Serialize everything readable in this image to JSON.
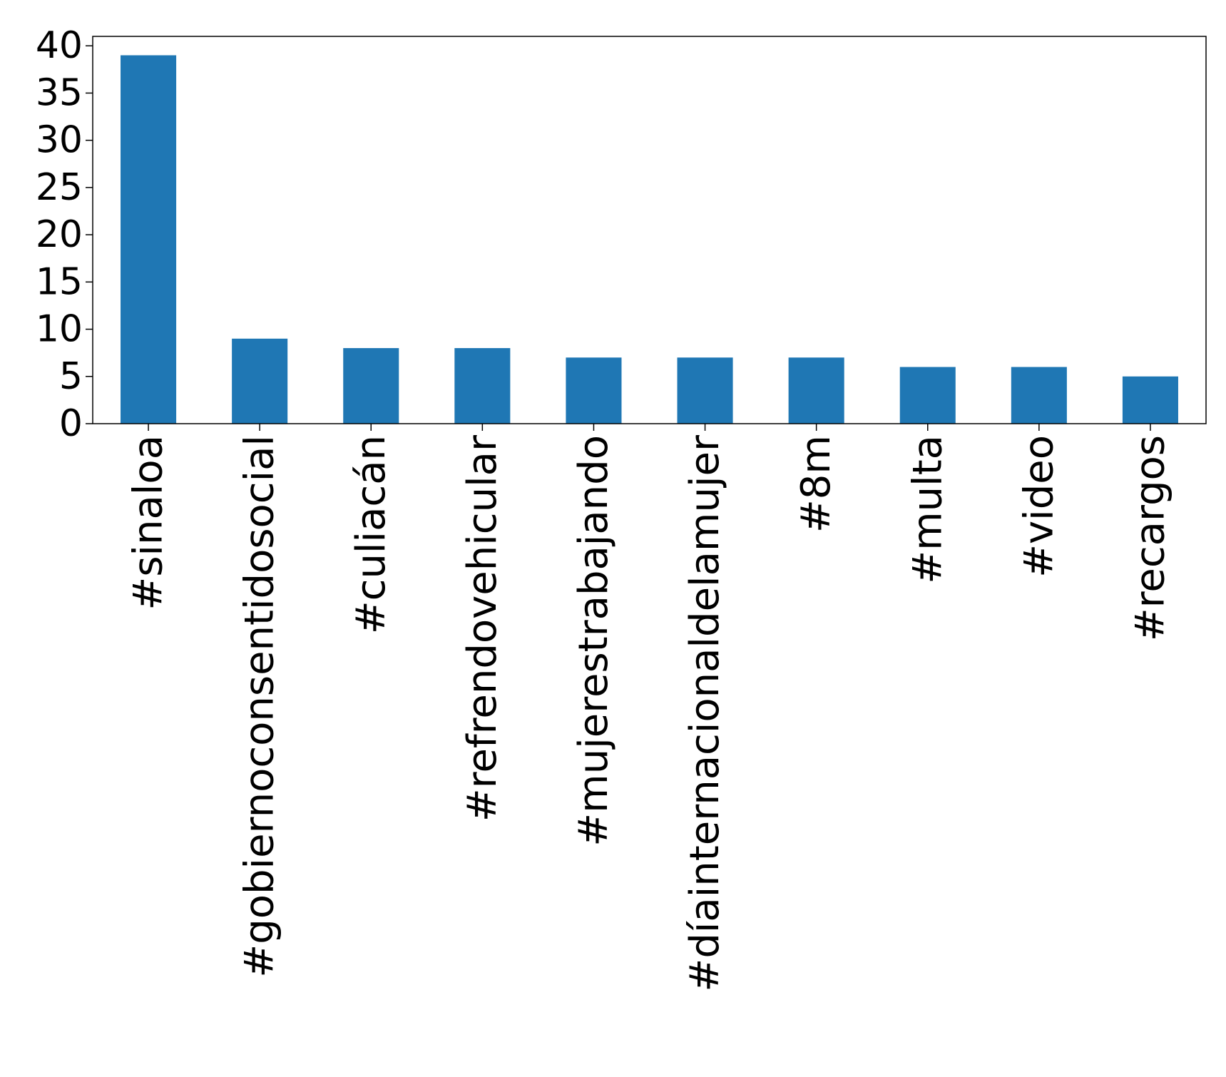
{
  "chart_data": {
    "type": "bar",
    "title": "",
    "xlabel": "",
    "ylabel": "",
    "categories": [
      "#sinaloa",
      "#gobiernoconsentidosocial",
      "#culiacán",
      "#refrendovehicular",
      "#mujerestrabajando",
      "#díainternacionaldelamujer",
      "#8m",
      "#multa",
      "#video",
      "#recargos"
    ],
    "values": [
      39,
      9,
      8,
      8,
      7,
      7,
      7,
      6,
      6,
      5
    ],
    "ylim": [
      0,
      41
    ],
    "yticks": [
      0,
      5,
      10,
      15,
      20,
      25,
      30,
      35,
      40
    ],
    "grid": false,
    "legend": "none",
    "bar_color": "#1f77b4"
  }
}
